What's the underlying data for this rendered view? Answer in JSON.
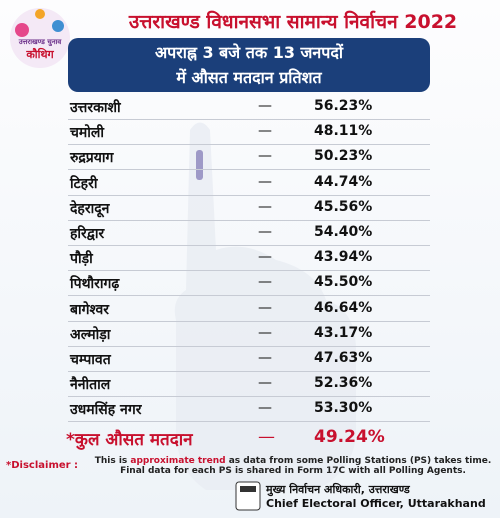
{
  "header": {
    "title": "उत्तराखण्ड विधानसभा सामान्य निर्वाचन 2022",
    "logo_line1": "उत्तराखण्ड चुनाव",
    "logo_line2": "कौथिग"
  },
  "banner": {
    "line1": "अपराह्न 3 बजे तक 13 जनपदों",
    "line2": "में औसत मतदान प्रतिशत"
  },
  "table": {
    "separator": "—",
    "rows": [
      [
        "उत्तरकाशी",
        "56.23%"
      ],
      [
        "चमोली",
        "48.11%"
      ],
      [
        "रुद्रप्रयाग",
        "50.23%"
      ],
      [
        "टिहरी",
        "44.74%"
      ],
      [
        "देहरादून",
        "45.56%"
      ],
      [
        "हरिद्वार",
        "54.40%"
      ],
      [
        "पौड़ी",
        "43.94%"
      ],
      [
        "पिथौरागढ़",
        "45.50%"
      ],
      [
        "बागेश्वर",
        "46.64%"
      ],
      [
        "अल्मोड़ा",
        "43.17%"
      ],
      [
        "चम्पावत",
        "47.63%"
      ],
      [
        "नैनीताल",
        "52.36%"
      ],
      [
        "उधमसिंह नगर",
        "53.30%"
      ]
    ],
    "total": [
      "*कुल औसत मतदान",
      "49.24%"
    ]
  },
  "disclaimer": {
    "label": "*Disclaimer :",
    "text_start": "This is ",
    "emphasis": "approximate trend",
    "text_end": " as data from some Polling Stations (PS) takes time.",
    "line2": "Final data for each PS is shared in Form 17C with all Polling Agents."
  },
  "footer": {
    "hindi": "मुख्य निर्वाचन अधिकारी, उत्तराखण्ड",
    "english": "Chief Electoral Officer, Uttarakhand"
  }
}
